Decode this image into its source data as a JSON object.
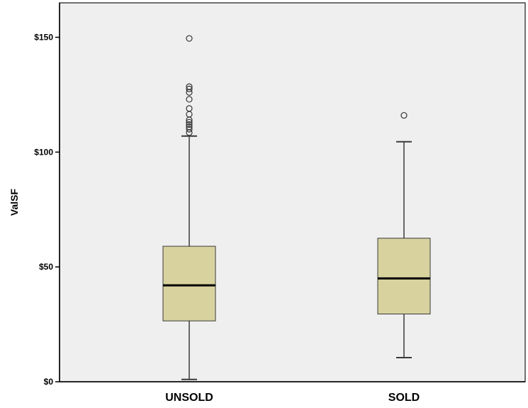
{
  "chart_data": {
    "type": "boxplot",
    "title": "",
    "xlabel": "",
    "ylabel": "ValSF",
    "ylim": [
      0,
      165
    ],
    "y_ticks": [
      {
        "value": 0,
        "label": "$0"
      },
      {
        "value": 50,
        "label": "$50"
      },
      {
        "value": 100,
        "label": "$100"
      },
      {
        "value": 150,
        "label": "$150"
      }
    ],
    "grid": false,
    "categories": [
      "UNSOLD",
      "SOLD"
    ],
    "boxes": [
      {
        "category": "UNSOLD",
        "whisker_low": 1,
        "q1": 26.5,
        "median": 42,
        "q3": 59,
        "whisker_high": 107,
        "outliers": [
          108.5,
          110,
          111,
          112,
          113,
          114,
          116.5,
          119,
          123,
          126,
          127.5,
          128.5,
          149.5
        ]
      },
      {
        "category": "SOLD",
        "whisker_low": 10.5,
        "q1": 29.5,
        "median": 45,
        "q3": 62.5,
        "whisker_high": 104.5,
        "outliers": [
          116
        ]
      }
    ],
    "colors": {
      "plot_background": "#efefef",
      "box_fill": "#d8d29f",
      "box_stroke": "#3a3a3a",
      "axis": "#000000"
    }
  }
}
